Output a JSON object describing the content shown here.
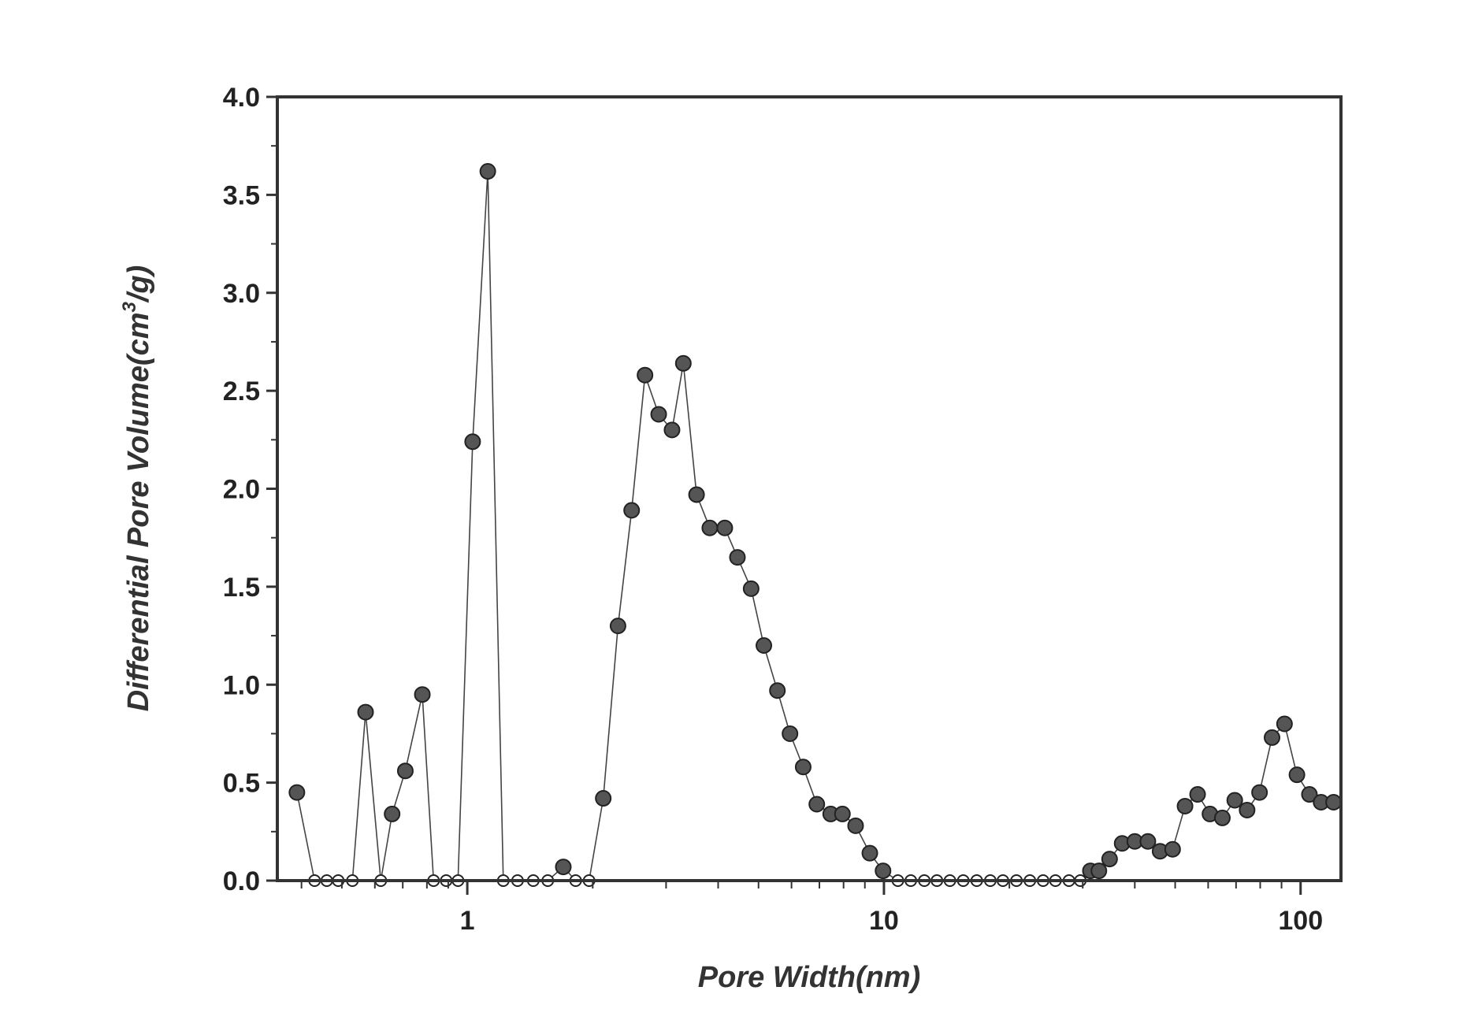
{
  "chart_data": {
    "type": "scatter",
    "xlabel": "Pore Width(nm)",
    "ylabel": "Differential Pore Volume(cm3/g)",
    "ylabel_parts": {
      "before": "Differential Pore Volume(cm",
      "sup": "3",
      "after": "/g)"
    },
    "x_scale": "log",
    "xlim": [
      0.35,
      125
    ],
    "ylim": [
      0,
      4.0
    ],
    "x_ticks": [
      1,
      10,
      100
    ],
    "x_tick_labels": [
      "1",
      "10",
      "100"
    ],
    "y_ticks": [
      0.0,
      0.5,
      1.0,
      1.5,
      2.0,
      2.5,
      3.0,
      3.5,
      4.0
    ],
    "y_tick_labels": [
      "0.0",
      "0.5",
      "1.0",
      "1.5",
      "2.0",
      "2.5",
      "3.0",
      "3.5",
      "4.0"
    ],
    "grid": false,
    "legend": "none",
    "colors": {
      "marker": "#555555",
      "marker_edge": "#222222",
      "line": "#444444",
      "axes": "#333333"
    },
    "series": [
      {
        "x": [
          0.39,
          0.43,
          0.46,
          0.49,
          0.53,
          0.57,
          0.62,
          0.66,
          0.71,
          0.78,
          0.83,
          0.89,
          0.95,
          1.03,
          1.12,
          1.22,
          1.32,
          1.44,
          1.56,
          1.7,
          1.82,
          1.96,
          2.12,
          2.3,
          2.48,
          2.67,
          2.88,
          3.1,
          3.3,
          3.55,
          3.82,
          4.15,
          4.45,
          4.8,
          5.15,
          5.55,
          5.95,
          6.4,
          6.9,
          7.45,
          7.95,
          8.55,
          9.25,
          9.95,
          10.8,
          11.6,
          12.5,
          13.4,
          14.4,
          15.5,
          16.7,
          18.0,
          19.3,
          20.8,
          22.4,
          24.1,
          25.8,
          27.8,
          29.6,
          31.3,
          32.8,
          34.8,
          37.3,
          40.0,
          43.0,
          46.0,
          49.3,
          52.8,
          56.6,
          60.6,
          64.9,
          69.5,
          74.4,
          79.7,
          85.4,
          91.5,
          98.0,
          105,
          112,
          120
        ],
        "y": [
          0.45,
          0.0,
          0.0,
          0.0,
          0.0,
          0.86,
          0.0,
          0.34,
          0.56,
          0.95,
          0.0,
          0.0,
          0.0,
          2.24,
          3.62,
          0.0,
          0.0,
          0.0,
          0.0,
          0.07,
          0.0,
          0.0,
          0.42,
          1.3,
          1.89,
          2.58,
          2.38,
          2.3,
          2.64,
          1.97,
          1.8,
          1.8,
          1.65,
          1.49,
          1.2,
          0.97,
          0.75,
          0.58,
          0.39,
          0.34,
          0.34,
          0.28,
          0.14,
          0.05,
          0.0,
          0.0,
          0.0,
          0.0,
          0.0,
          0.0,
          0.0,
          0.0,
          0.0,
          0.0,
          0.0,
          0.0,
          0.0,
          0.0,
          0.0,
          0.05,
          0.05,
          0.11,
          0.19,
          0.2,
          0.2,
          0.15,
          0.16,
          0.38,
          0.44,
          0.34,
          0.32,
          0.41,
          0.36,
          0.45,
          0.73,
          0.8,
          0.54,
          0.44,
          0.4,
          0.4
        ]
      }
    ]
  }
}
